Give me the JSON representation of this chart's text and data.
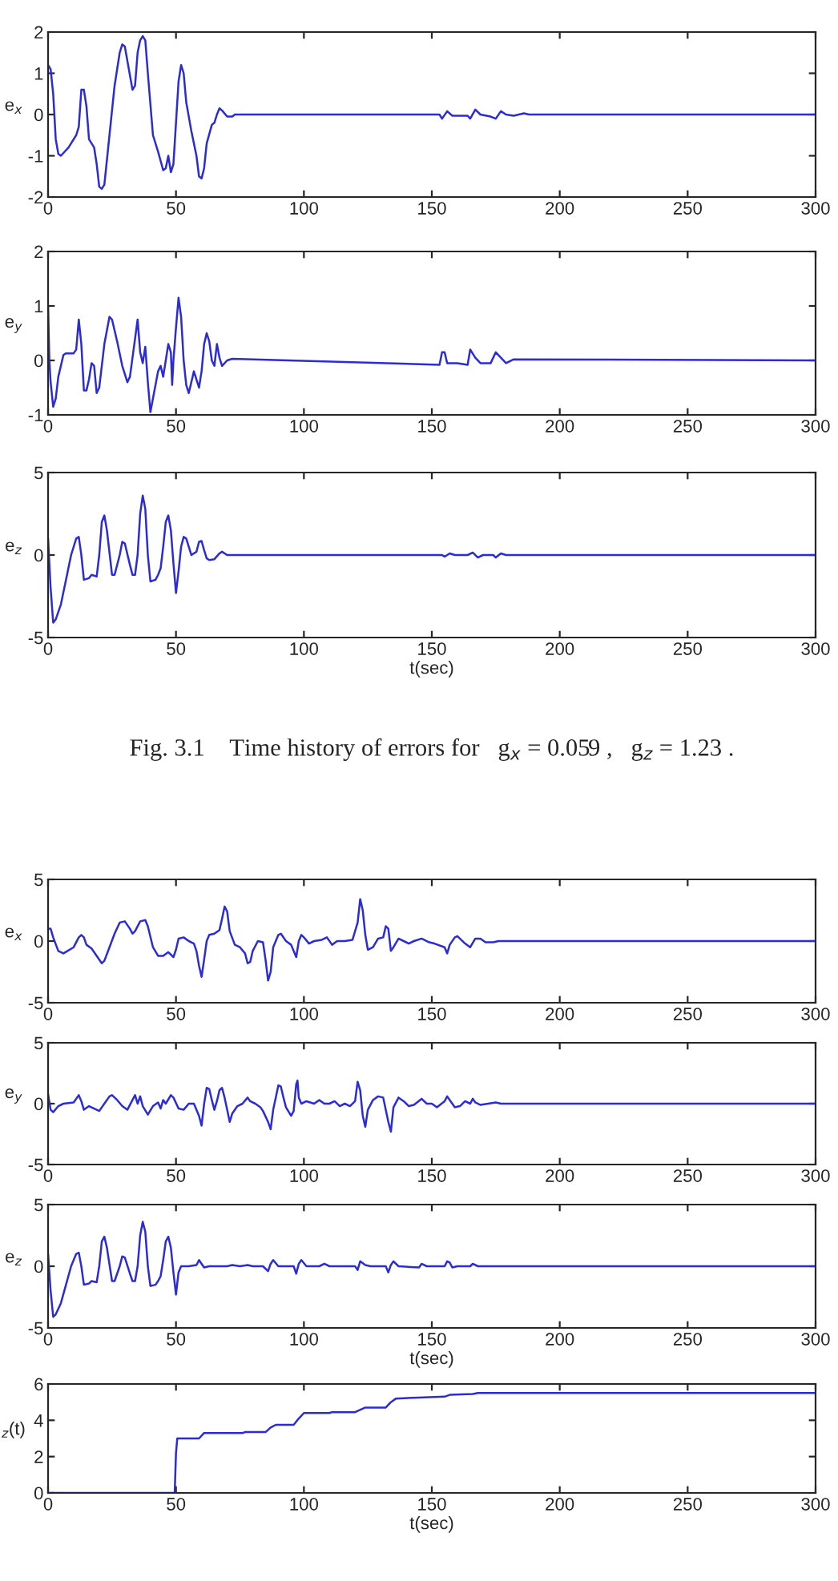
{
  "chart_data": [
    {
      "type": "line",
      "ylabel": "e$_{x}$",
      "xlim": [
        0,
        300
      ],
      "xticks": [
        0,
        50,
        100,
        150,
        200,
        250,
        300
      ],
      "ylim": [
        -2,
        2
      ],
      "yticks": [
        -2,
        -1,
        0,
        1,
        2
      ],
      "grid": false,
      "legend": false,
      "marker": "none",
      "line_style": "solid",
      "series": [
        {
          "color": "#2b2bd9",
          "x": [
            0,
            1,
            2,
            3,
            4,
            5,
            8,
            11,
            12,
            13,
            14,
            15,
            16,
            18,
            19,
            20,
            21,
            22,
            24,
            26,
            28,
            29,
            30,
            31,
            33,
            34,
            35,
            36,
            37,
            38,
            39,
            41,
            43,
            45,
            46,
            47,
            48,
            49,
            50,
            51,
            52,
            53,
            54,
            56,
            58,
            59,
            60,
            61,
            62,
            64,
            65,
            66,
            67,
            68,
            70,
            72,
            73,
            153,
            154,
            156,
            158,
            164,
            165,
            167,
            169,
            173,
            175,
            177,
            179,
            182,
            186,
            188,
            300
          ],
          "values": [
            1.2,
            1.1,
            0.5,
            -0.6,
            -0.95,
            -1.0,
            -0.8,
            -0.5,
            -0.3,
            0.6,
            0.6,
            0.2,
            -0.6,
            -0.8,
            -1.2,
            -1.75,
            -1.8,
            -1.7,
            -0.5,
            0.7,
            1.5,
            1.7,
            1.65,
            1.3,
            0.6,
            0.7,
            1.5,
            1.8,
            1.9,
            1.8,
            1.0,
            -0.5,
            -0.9,
            -1.35,
            -1.3,
            -1.0,
            -1.4,
            -1.2,
            -0.2,
            0.8,
            1.2,
            1.0,
            0.3,
            -0.4,
            -1.0,
            -1.5,
            -1.55,
            -1.3,
            -0.7,
            -0.25,
            -0.2,
            0.0,
            0.15,
            0.1,
            -0.05,
            -0.05,
            0.0,
            0.0,
            -0.1,
            0.08,
            -0.03,
            -0.03,
            -0.1,
            0.12,
            0.0,
            -0.05,
            -0.1,
            0.08,
            0.0,
            -0.03,
            0.03,
            0.0,
            0.0
          ]
        }
      ]
    },
    {
      "type": "line",
      "ylabel": "e$_{y}$",
      "xlim": [
        0,
        300
      ],
      "xticks": [
        0,
        50,
        100,
        150,
        200,
        250,
        300
      ],
      "ylim": [
        -1,
        2
      ],
      "yticks": [
        -1,
        0,
        1,
        2
      ],
      "grid": false,
      "legend": false,
      "marker": "none",
      "line_style": "solid",
      "series": [
        {
          "color": "#2b2bd9",
          "x": [
            0,
            0.5,
            1,
            2,
            3,
            4,
            6,
            7,
            10,
            11,
            12,
            13,
            14,
            15,
            16,
            17,
            18,
            19,
            20,
            22,
            24,
            25,
            27,
            29,
            31,
            32,
            34,
            35,
            36,
            37,
            38,
            39,
            40,
            41,
            43,
            44,
            45,
            46,
            47,
            48,
            48.5,
            49,
            50,
            51,
            52,
            53,
            54,
            55,
            57,
            58,
            59,
            60,
            61,
            62,
            63,
            64,
            65,
            66,
            67,
            68,
            70,
            72,
            153,
            154,
            155,
            156,
            160,
            164,
            165,
            167,
            169,
            173,
            175,
            177,
            179,
            182,
            300
          ],
          "values": [
            1.0,
            0.0,
            -0.4,
            -0.85,
            -0.7,
            -0.3,
            0.1,
            0.13,
            0.13,
            0.2,
            0.75,
            0.3,
            -0.55,
            -0.55,
            -0.35,
            -0.05,
            -0.1,
            -0.6,
            -0.5,
            0.3,
            0.8,
            0.75,
            0.35,
            -0.1,
            -0.4,
            -0.3,
            0.4,
            0.75,
            0.15,
            -0.05,
            0.25,
            -0.4,
            -0.95,
            -0.7,
            -0.2,
            -0.1,
            -0.3,
            0.0,
            0.3,
            0.15,
            -0.45,
            0.0,
            0.6,
            1.15,
            0.8,
            0.0,
            -0.45,
            -0.6,
            -0.2,
            -0.35,
            -0.5,
            -0.2,
            0.3,
            0.5,
            0.35,
            0.0,
            -0.1,
            0.3,
            0.05,
            -0.1,
            0.0,
            0.03,
            -0.08,
            0.15,
            0.15,
            -0.05,
            -0.05,
            -0.08,
            0.2,
            0.05,
            -0.05,
            -0.05,
            0.15,
            0.05,
            -0.05,
            0.02,
            0.0
          ]
        }
      ]
    },
    {
      "type": "line",
      "ylabel": "e$_{z}$",
      "xlabel": "t(sec)",
      "xlim": [
        0,
        300
      ],
      "xticks": [
        0,
        50,
        100,
        150,
        200,
        250,
        300
      ],
      "ylim": [
        -5,
        5
      ],
      "yticks": [
        -5,
        0,
        5
      ],
      "grid": false,
      "legend": false,
      "marker": "none",
      "line_style": "solid",
      "annotations": [
        "Fig. 3.1    Time history of errors for   g$_{x}$ = 0.059 ,   g$_{z}$ = 1.23 ."
      ],
      "series": [
        {
          "color": "#2b2bd9",
          "x": [
            0,
            1,
            2,
            3,
            5,
            7,
            9,
            11,
            12,
            13,
            14,
            16,
            17,
            19,
            20,
            21,
            22,
            23,
            25,
            26,
            28,
            29,
            30,
            32,
            33,
            34,
            35,
            36,
            37,
            38,
            39,
            40,
            42,
            43,
            44,
            45,
            46,
            47,
            48,
            49,
            50,
            51,
            52,
            53,
            54,
            55,
            56,
            58,
            59,
            60,
            61,
            62,
            63,
            65,
            67,
            68,
            70,
            154,
            155,
            157,
            159,
            164,
            166,
            168,
            170,
            174,
            175,
            177,
            179,
            300
          ],
          "values": [
            1.0,
            -2.0,
            -4.1,
            -3.9,
            -3.0,
            -1.5,
            0.0,
            1.0,
            1.1,
            0.0,
            -1.5,
            -1.4,
            -1.2,
            -1.3,
            0.0,
            2.0,
            2.4,
            1.5,
            -1.2,
            -1.2,
            0.0,
            0.8,
            0.7,
            -0.6,
            -1.2,
            -1.2,
            0.0,
            2.5,
            3.6,
            2.8,
            0.0,
            -1.6,
            -1.5,
            -1.2,
            -0.8,
            0.5,
            2.0,
            2.4,
            1.5,
            -0.5,
            -2.3,
            -1.0,
            0.5,
            1.1,
            1.0,
            0.5,
            0.0,
            0.2,
            0.8,
            0.85,
            0.3,
            -0.2,
            -0.3,
            -0.25,
            0.1,
            0.2,
            0.0,
            0.0,
            -0.1,
            0.1,
            0.0,
            0.0,
            0.15,
            -0.15,
            0.0,
            0.0,
            -0.15,
            0.1,
            0.0,
            0.0
          ]
        }
      ]
    },
    {
      "type": "line",
      "ylabel": "e$_{x}$",
      "xlim": [
        0,
        300
      ],
      "xticks": [
        0,
        50,
        100,
        150,
        200,
        250,
        300
      ],
      "ylim": [
        -5,
        5
      ],
      "yticks": [
        -5,
        0,
        5
      ],
      "grid": false,
      "legend": false,
      "marker": "none",
      "line_style": "solid",
      "series": [
        {
          "color": "#2b2bd9",
          "x": [
            0,
            1,
            2,
            4,
            6,
            10,
            12,
            13,
            14,
            15,
            17,
            19,
            21,
            22,
            24,
            26,
            28,
            30,
            32,
            33,
            34,
            36,
            38,
            39,
            41,
            43,
            45,
            47,
            49,
            50,
            51,
            53,
            55,
            57,
            58,
            59,
            60,
            61,
            62,
            63,
            65,
            67,
            68,
            69,
            70,
            71,
            73,
            75,
            77,
            78,
            79,
            80,
            82,
            84,
            85,
            86,
            87,
            88,
            90,
            91,
            93,
            95,
            97,
            98,
            99,
            100,
            102,
            104,
            107,
            109,
            111,
            113,
            116,
            119,
            121,
            122,
            123,
            124,
            125,
            127,
            129,
            131,
            132,
            133,
            134,
            135,
            137,
            139,
            141,
            143,
            146,
            149,
            151,
            155,
            156,
            157,
            159,
            160,
            163,
            165,
            167,
            169,
            171,
            174,
            176,
            300
          ],
          "values": [
            1.0,
            1.0,
            0.3,
            -0.8,
            -1.0,
            -0.5,
            0.3,
            0.5,
            0.3,
            -0.3,
            -0.6,
            -1.2,
            -1.8,
            -1.6,
            -0.5,
            0.6,
            1.5,
            1.6,
            1.0,
            0.6,
            0.8,
            1.6,
            1.7,
            1.2,
            -0.5,
            -1.2,
            -1.2,
            -0.9,
            -1.3,
            -0.7,
            0.2,
            0.3,
            0.0,
            -0.2,
            -0.8,
            -2.0,
            -2.9,
            -1.5,
            0.0,
            0.5,
            0.6,
            0.9,
            1.8,
            2.8,
            2.4,
            0.8,
            -0.3,
            -0.5,
            -1.0,
            -1.8,
            -1.7,
            -0.8,
            0.0,
            -0.1,
            -1.5,
            -3.2,
            -2.5,
            -0.5,
            0.5,
            0.6,
            0.0,
            -0.3,
            -1.3,
            0.0,
            0.5,
            0.3,
            -0.2,
            0.0,
            0.1,
            0.3,
            -0.3,
            0.0,
            0.0,
            0.1,
            1.5,
            3.4,
            2.5,
            0.5,
            -0.7,
            -0.5,
            0.2,
            0.3,
            1.2,
            1.0,
            -0.8,
            -0.5,
            0.2,
            0.0,
            -0.2,
            0.0,
            0.2,
            -0.1,
            -0.2,
            -0.5,
            -1.0,
            -0.3,
            0.3,
            0.4,
            -0.2,
            -0.5,
            0.2,
            0.2,
            -0.1,
            -0.1,
            0.0,
            0.0
          ]
        }
      ]
    },
    {
      "type": "line",
      "ylabel": "e$_{y}$",
      "xlim": [
        0,
        300
      ],
      "xticks": [
        0,
        50,
        100,
        150,
        200,
        250,
        300
      ],
      "ylim": [
        -5,
        5
      ],
      "yticks": [
        -5,
        0,
        5
      ],
      "grid": false,
      "legend": false,
      "marker": "none",
      "line_style": "solid",
      "series": [
        {
          "color": "#2b2bd9",
          "x": [
            0,
            1,
            2,
            4,
            6,
            10,
            12,
            13,
            14,
            16,
            18,
            20,
            22,
            24,
            25,
            27,
            29,
            31,
            33,
            34,
            35,
            36,
            37,
            39,
            41,
            43,
            44,
            45,
            46,
            48,
            49,
            51,
            53,
            55,
            57,
            59,
            60,
            61,
            62,
            63,
            64,
            65,
            66,
            67,
            68,
            69,
            70,
            71,
            72,
            74,
            76,
            78,
            79,
            81,
            83,
            84,
            86,
            87,
            88,
            89,
            90,
            91,
            92,
            93,
            95,
            96,
            97,
            97.5,
            98,
            99,
            101,
            104,
            106,
            108,
            110,
            112,
            114,
            116,
            118,
            120,
            121,
            122,
            123,
            124,
            125,
            127,
            129,
            131,
            133,
            134,
            135,
            137,
            139,
            141,
            143,
            146,
            148,
            150,
            152,
            155,
            156,
            157,
            159,
            161,
            163,
            165,
            166,
            167,
            169,
            172,
            175,
            177,
            300
          ],
          "values": [
            0.8,
            -0.5,
            -0.7,
            -0.2,
            0.0,
            0.1,
            0.7,
            0.2,
            -0.5,
            -0.2,
            -0.4,
            -0.6,
            0.0,
            0.6,
            0.7,
            0.3,
            -0.2,
            -0.5,
            0.3,
            0.7,
            0.0,
            0.6,
            -0.2,
            -0.9,
            -0.2,
            0.1,
            -0.4,
            0.3,
            0.0,
            0.7,
            0.5,
            -0.4,
            -0.5,
            0.0,
            0.0,
            -1.0,
            -1.8,
            0.0,
            1.3,
            1.2,
            0.3,
            -0.5,
            0.2,
            1.1,
            1.3,
            0.5,
            -0.5,
            -1.5,
            -0.8,
            -0.2,
            0.0,
            0.5,
            0.2,
            0.0,
            -0.3,
            -0.6,
            -1.5,
            -2.1,
            -0.5,
            0.5,
            1.5,
            1.4,
            0.5,
            -0.3,
            -1.0,
            -0.6,
            1.6,
            1.9,
            0.5,
            0.0,
            0.2,
            0.0,
            0.3,
            0.0,
            0.0,
            0.2,
            -0.2,
            0.0,
            -0.2,
            0.2,
            1.8,
            1.1,
            -1.0,
            -1.9,
            -0.5,
            0.3,
            0.6,
            0.5,
            -1.5,
            -2.3,
            -0.3,
            0.5,
            0.2,
            -0.2,
            -0.1,
            0.4,
            0.0,
            0.0,
            -0.3,
            0.2,
            0.6,
            0.3,
            -0.3,
            -0.2,
            0.2,
            0.0,
            0.4,
            0.1,
            -0.1,
            0.0,
            0.1,
            0.0,
            0.0
          ]
        }
      ]
    },
    {
      "type": "line",
      "ylabel": "e$_{z}$",
      "xlabel": "t(sec)",
      "xlim": [
        0,
        300
      ],
      "xticks": [
        0,
        50,
        100,
        150,
        200,
        250,
        300
      ],
      "ylim": [
        -5,
        5
      ],
      "yticks": [
        -5,
        0,
        5
      ],
      "grid": false,
      "legend": false,
      "marker": "none",
      "line_style": "solid",
      "series": [
        {
          "color": "#2b2bd9",
          "x": [
            0,
            1,
            2,
            3,
            5,
            7,
            9,
            11,
            12,
            13,
            14,
            16,
            17,
            19,
            20,
            21,
            22,
            23,
            25,
            26,
            28,
            29,
            30,
            32,
            33,
            34,
            35,
            36,
            37,
            38,
            39,
            40,
            42,
            43,
            44,
            45,
            46,
            47,
            48,
            49,
            50,
            51,
            52,
            55,
            58,
            59,
            60,
            61,
            63,
            70,
            72,
            75,
            78,
            80,
            84,
            86,
            87,
            88,
            90,
            96,
            97,
            98,
            99,
            101,
            106,
            108,
            110,
            120,
            121,
            122,
            124,
            126,
            132,
            133,
            134,
            135,
            137,
            145,
            146,
            148,
            155,
            156,
            157,
            158,
            160,
            165,
            166,
            168,
            300
          ],
          "values": [
            1.0,
            -2.0,
            -4.1,
            -3.9,
            -3.0,
            -1.5,
            0.0,
            1.0,
            1.1,
            0.0,
            -1.5,
            -1.4,
            -1.2,
            -1.3,
            0.0,
            2.0,
            2.4,
            1.5,
            -1.2,
            -1.2,
            0.0,
            0.8,
            0.7,
            -0.6,
            -1.2,
            -1.2,
            0.0,
            2.5,
            3.6,
            2.8,
            0.0,
            -1.6,
            -1.5,
            -1.2,
            -0.8,
            0.5,
            2.0,
            2.4,
            1.5,
            -0.5,
            -2.3,
            -0.5,
            0.0,
            0.0,
            0.1,
            0.5,
            0.2,
            -0.1,
            0.0,
            0.0,
            0.1,
            0.0,
            0.1,
            0.0,
            0.0,
            -0.4,
            0.2,
            0.5,
            0.0,
            0.0,
            -0.6,
            0.2,
            0.5,
            0.0,
            0.0,
            0.2,
            0.0,
            0.0,
            -0.3,
            0.4,
            0.1,
            0.0,
            0.0,
            -0.5,
            0.1,
            0.4,
            0.0,
            -0.1,
            0.2,
            0.0,
            0.0,
            0.4,
            0.3,
            -0.1,
            0.0,
            0.0,
            0.2,
            0.0,
            0.0
          ]
        }
      ]
    },
    {
      "type": "line",
      "ylabel": "$_{z}$(t)",
      "xlabel": "t(sec)",
      "xlim": [
        0,
        300
      ],
      "xticks": [
        0,
        50,
        100,
        150,
        200,
        250,
        300
      ],
      "ylim": [
        0,
        6
      ],
      "yticks": [
        0,
        2,
        4,
        6
      ],
      "grid": false,
      "legend": false,
      "marker": "none",
      "line_style": "solid",
      "series": [
        {
          "color": "#2b2bd9",
          "x": [
            0,
            49.5,
            50,
            50.5,
            59,
            61,
            76,
            77,
            85,
            87,
            89,
            96,
            98,
            100,
            110,
            111,
            120,
            124,
            132,
            134,
            136,
            145,
            155,
            157,
            166,
            168,
            300
          ],
          "values": [
            0,
            0,
            2.2,
            3.0,
            3.0,
            3.3,
            3.3,
            3.35,
            3.35,
            3.6,
            3.75,
            3.75,
            4.1,
            4.4,
            4.4,
            4.45,
            4.45,
            4.7,
            4.7,
            5.0,
            5.2,
            5.25,
            5.3,
            5.4,
            5.45,
            5.5,
            5.5
          ]
        }
      ]
    }
  ]
}
